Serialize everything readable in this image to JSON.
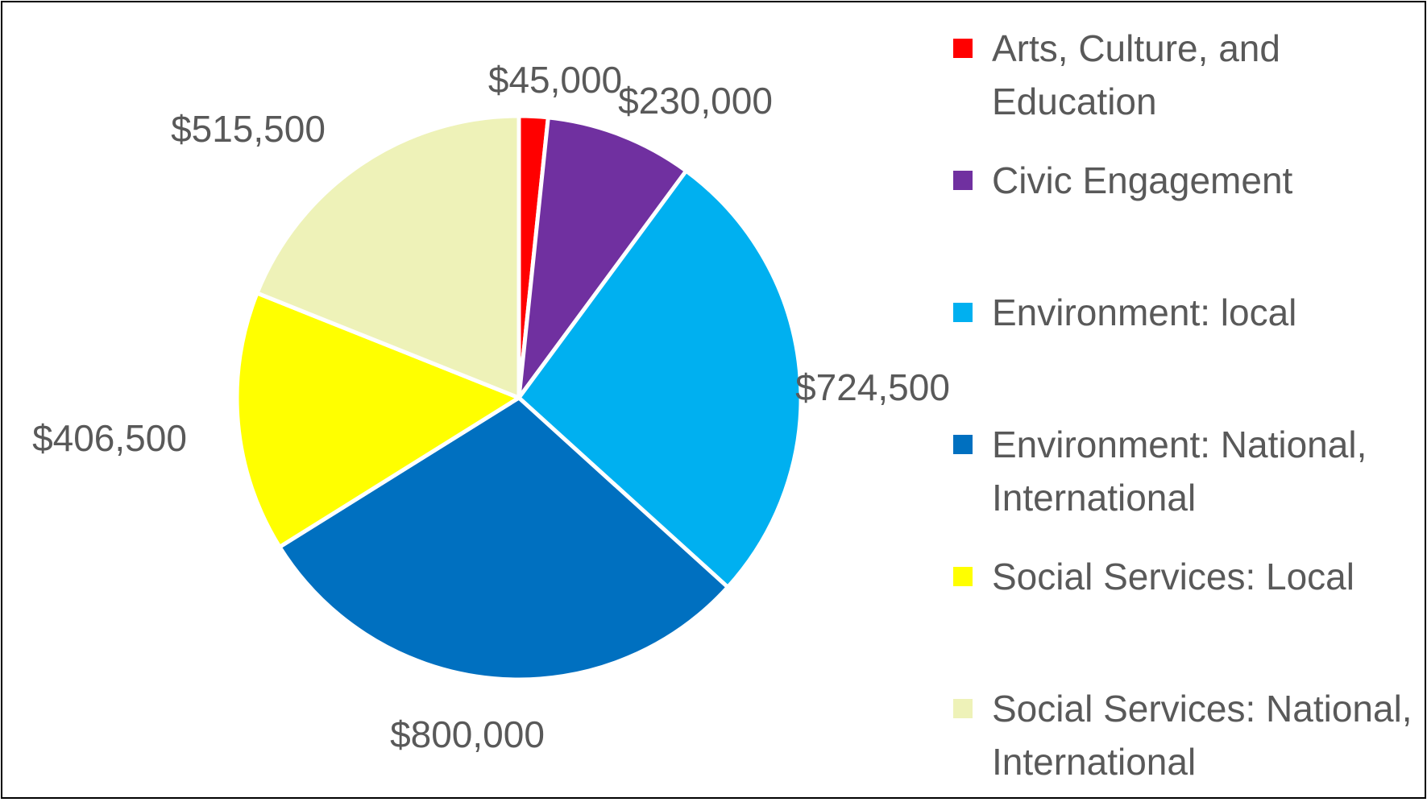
{
  "chart_data": {
    "type": "pie",
    "categories": [
      "Arts, Culture, and Education",
      "Civic Engagement",
      "Environment: local",
      "Environment: National, International",
      "Social Services: Local",
      "Social Services: National, International"
    ],
    "values": [
      45000,
      230000,
      724500,
      800000,
      406500,
      515500
    ],
    "data_labels": [
      "$45,000",
      "$230,000",
      "$724,500",
      "$800,000",
      "$406,500",
      "$515,500"
    ],
    "colors": [
      "#FF0000",
      "#7030A0",
      "#00B0F0",
      "#0070C0",
      "#FFFF00",
      "#EEF2B8"
    ],
    "legend_position": "right",
    "title": ""
  }
}
